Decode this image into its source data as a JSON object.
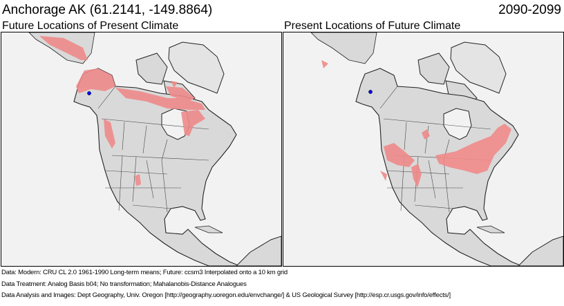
{
  "header": {
    "location": "Anchorage AK  (61.2141, -149.8864)",
    "period": "2090-2099"
  },
  "panels": [
    {
      "title": "Future Locations of Present Climate"
    },
    {
      "title": "Present Locations of Future Climate"
    }
  ],
  "colors": {
    "ocean": "#f2f2f2",
    "land": "#d9d9d9",
    "analog": "#ef8a8a",
    "marker": "#0000ff"
  },
  "footer": {
    "data": "Data:  Modern: CRU CL 2.0 1961-1990 Long-term means; Future: ccsm3 Interpolated onto a 10 km grid",
    "treatment": "Data Treatment:  Analog Basis b04; No transformation; Mahalanobis-Distance Analogues",
    "analysis": "Data Analysis and Images:  Dept Geography, Univ. Oregon [http://geography.uoregon.edu/envchange/] & US Geological Survey [http://esp.cr.usgs.gov/info/effects/]"
  }
}
